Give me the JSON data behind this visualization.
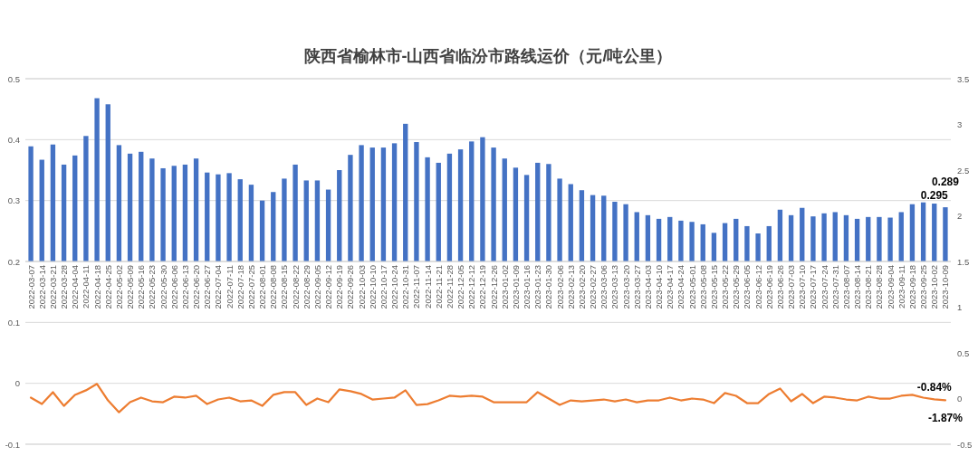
{
  "chart_data": [
    {
      "type": "bar",
      "title": "陕西省榆林市-山西省临汾市路线运价（元/吨公里）",
      "categories": [
        "2022-03-07",
        "2022-03-14",
        "2022-03-21",
        "2022-03-28",
        "2022-04-04",
        "2022-04-11",
        "2022-04-18",
        "2022-04-25",
        "2022-05-02",
        "2022-05-09",
        "2022-05-16",
        "2022-05-23",
        "2022-05-30",
        "2022-06-06",
        "2022-06-13",
        "2022-06-20",
        "2022-06-27",
        "2022-07-04",
        "2022-07-11",
        "2022-07-18",
        "2022-07-25",
        "2022-08-01",
        "2022-08-08",
        "2022-08-15",
        "2022-08-22",
        "2022-08-29",
        "2022-09-05",
        "2022-09-12",
        "2022-09-19",
        "2022-09-26",
        "2022-10-03",
        "2022-10-10",
        "2022-10-17",
        "2022-10-24",
        "2022-10-31",
        "2022-11-07",
        "2022-11-14",
        "2022-11-21",
        "2022-11-28",
        "2022-12-05",
        "2022-12-12",
        "2022-12-19",
        "2022-12-26",
        "2023-01-02",
        "2023-01-09",
        "2023-01-16",
        "2023-01-23",
        "2023-01-30",
        "2023-02-06",
        "2023-02-13",
        "2023-02-20",
        "2023-02-27",
        "2023-03-06",
        "2023-03-13",
        "2023-03-20",
        "2023-03-27",
        "2023-04-03",
        "2023-04-10",
        "2023-04-17",
        "2023-04-24",
        "2023-05-01",
        "2023-05-08",
        "2023-05-15",
        "2023-05-22",
        "2023-05-29",
        "2023-06-05",
        "2023-06-12",
        "2023-06-19",
        "2023-06-26",
        "2023-07-03",
        "2023-07-10",
        "2023-07-17",
        "2023-07-24",
        "2023-07-31",
        "2023-08-07",
        "2023-08-14",
        "2023-08-21",
        "2023-08-28",
        "2023-09-04",
        "2023-09-11",
        "2023-09-18",
        "2023-09-25",
        "2023-10-02",
        "2023-10-09"
      ],
      "series": [
        {
          "color": "#4472c4",
          "values": [
            0.389,
            0.367,
            0.392,
            0.359,
            0.374,
            0.406,
            0.468,
            0.458,
            0.391,
            0.377,
            0.38,
            0.369,
            0.353,
            0.357,
            0.359,
            0.369,
            0.346,
            0.343,
            0.345,
            0.335,
            0.326,
            0.3,
            0.314,
            0.336,
            0.359,
            0.333,
            0.333,
            0.318,
            0.35,
            0.375,
            0.391,
            0.387,
            0.387,
            0.394,
            0.426,
            0.396,
            0.371,
            0.362,
            0.377,
            0.384,
            0.397,
            0.404,
            0.387,
            0.369,
            0.354,
            0.342,
            0.362,
            0.36,
            0.336,
            0.327,
            0.317,
            0.309,
            0.308,
            0.298,
            0.294,
            0.281,
            0.276,
            0.27,
            0.273,
            0.267,
            0.265,
            0.261,
            0.247,
            0.263,
            0.27,
            0.258,
            0.246,
            0.258,
            0.285,
            0.276,
            0.288,
            0.274,
            0.279,
            0.281,
            0.276,
            0.27,
            0.273,
            0.273,
            0.272,
            0.281,
            0.294,
            0.297,
            0.295,
            0.289
          ],
          "value_labels": [
            null,
            null,
            null,
            null,
            null,
            null,
            null,
            null,
            null,
            null,
            null,
            null,
            null,
            null,
            null,
            null,
            null,
            null,
            null,
            null,
            null,
            null,
            null,
            null,
            null,
            null,
            null,
            null,
            null,
            null,
            null,
            null,
            null,
            null,
            null,
            null,
            null,
            null,
            null,
            null,
            null,
            null,
            null,
            null,
            null,
            null,
            null,
            null,
            null,
            null,
            null,
            null,
            null,
            null,
            null,
            null,
            null,
            null,
            null,
            null,
            null,
            null,
            null,
            null,
            null,
            null,
            null,
            null,
            null,
            null,
            null,
            null,
            null,
            null,
            null,
            null,
            null,
            null,
            null,
            null,
            null,
            null,
            "0.295",
            "0.289"
          ]
        }
      ],
      "ylim": [
        0.2,
        0.5
      ],
      "yticks": [
        0.5,
        0.4,
        0.3,
        0.2
      ],
      "y2lim": [
        1.5,
        3.5
      ],
      "y2ticks": [
        3.5,
        3,
        2.5,
        2,
        1.5
      ],
      "grid": "y"
    },
    {
      "type": "line",
      "categories": [
        null,
        null,
        null,
        null,
        null,
        null,
        null,
        null,
        null,
        null,
        null,
        null,
        null,
        null,
        null,
        null,
        null,
        null,
        null,
        null,
        null,
        null,
        null,
        null,
        null,
        null,
        null,
        null,
        null,
        null,
        null,
        null,
        null,
        null,
        null,
        null,
        null,
        null,
        null,
        null,
        null,
        null,
        null,
        null,
        null,
        null,
        null,
        null,
        null,
        null,
        null,
        null,
        null,
        null,
        null,
        null,
        null,
        null,
        null,
        null,
        null,
        null,
        null,
        null,
        null,
        null,
        null,
        null,
        null,
        null,
        null,
        null,
        null,
        null,
        null,
        null,
        null,
        null,
        null,
        null,
        null,
        null,
        null,
        null
      ],
      "series": [
        {
          "axis": "y2",
          "color": "#ed7d31",
          "values": [
            0.01,
            -0.06,
            0.07,
            -0.08,
            0.04,
            0.09,
            0.16,
            -0.02,
            -0.15,
            -0.04,
            0.01,
            -0.03,
            -0.04,
            0.02,
            0.01,
            0.03,
            -0.06,
            -0.01,
            0.01,
            -0.03,
            -0.02,
            -0.08,
            0.04,
            0.07,
            0.07,
            -0.07,
            0,
            -0.04,
            0.1,
            0.08,
            0.05,
            -0.01,
            0,
            0.01,
            0.09,
            -0.07,
            -0.06,
            -0.02,
            0.03,
            0.02,
            0.03,
            0.02,
            -0.04,
            -0.04,
            -0.04,
            -0.04,
            0.07,
            0,
            -0.07,
            -0.02,
            -0.03,
            -0.02,
            -0.01,
            -0.03,
            -0.01,
            -0.04,
            -0.02,
            -0.02,
            0.01,
            -0.02,
            0,
            -0.01,
            -0.05,
            0.06,
            0.03,
            -0.05,
            -0.05,
            0.05,
            0.11,
            -0.03,
            0.05,
            -0.05,
            0.02,
            0.01,
            -0.01,
            -0.02,
            0.02,
            0,
            0,
            0.03,
            0.04,
            0.01,
            -0.0084,
            -0.0187
          ],
          "value_labels": [
            null,
            null,
            null,
            null,
            null,
            null,
            null,
            null,
            null,
            null,
            null,
            null,
            null,
            null,
            null,
            null,
            null,
            null,
            null,
            null,
            null,
            null,
            null,
            null,
            null,
            null,
            null,
            null,
            null,
            null,
            null,
            null,
            null,
            null,
            null,
            null,
            null,
            null,
            null,
            null,
            null,
            null,
            null,
            null,
            null,
            null,
            null,
            null,
            null,
            null,
            null,
            null,
            null,
            null,
            null,
            null,
            null,
            null,
            null,
            null,
            null,
            null,
            null,
            null,
            null,
            null,
            null,
            null,
            null,
            null,
            null,
            null,
            null,
            null,
            null,
            null,
            null,
            null,
            null,
            null,
            null,
            null,
            "-0.84%",
            "-1.87%"
          ]
        }
      ],
      "ylim": [
        -0.1,
        0.2
      ],
      "yticks": [
        0.1,
        0,
        -0.1
      ],
      "y2lim": [
        -0.5,
        1.5
      ],
      "y2ticks": [
        1,
        0.5,
        0,
        -0.5
      ],
      "grid": "y",
      "tick_labels": "y"
    }
  ]
}
